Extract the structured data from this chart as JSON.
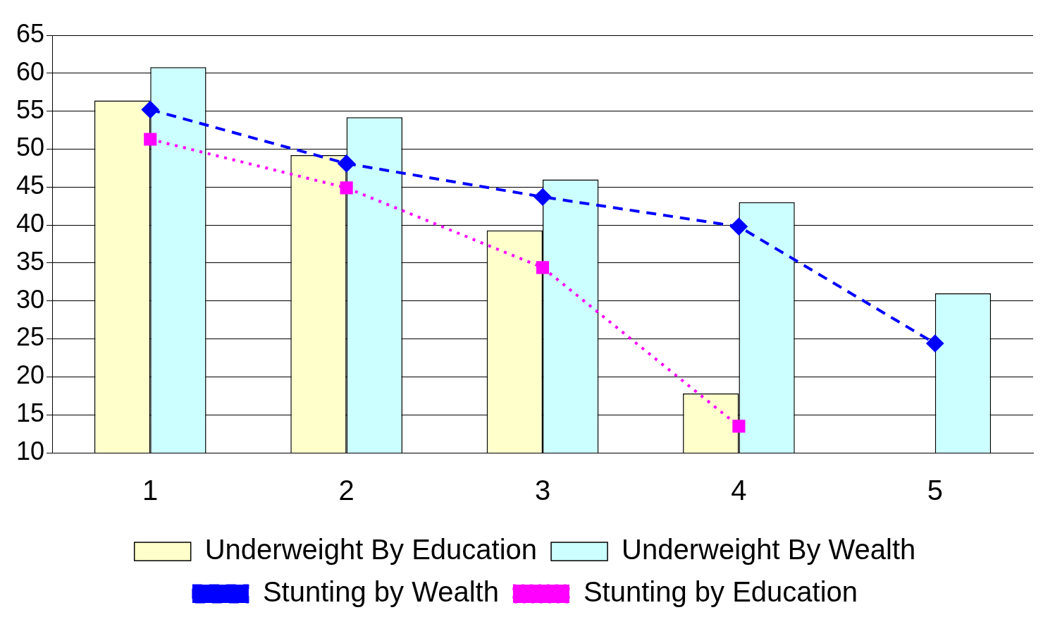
{
  "chart_data": {
    "type": "bar",
    "categories": [
      "1",
      "2",
      "3",
      "4",
      "5"
    ],
    "series": [
      {
        "name": "Underweight By Education",
        "color": "#ffffcc",
        "values": [
          56.4,
          49.2,
          39.3,
          17.8,
          null
        ]
      },
      {
        "name": "Underweight By Wealth",
        "color": "#ccffff",
        "values": [
          60.8,
          54.2,
          46.0,
          43.0,
          31.0
        ]
      },
      {
        "name": "Stunting by Wealth",
        "type": "line",
        "color": "#0000ff",
        "marker": "diamond",
        "line_style": "dashed",
        "values": [
          55.2,
          48.1,
          43.7,
          39.8,
          24.4
        ]
      },
      {
        "name": "Stunting by Education",
        "type": "line",
        "color": "#ff00ff",
        "marker": "square",
        "line_style": "dotted",
        "values": [
          51.3,
          44.9,
          34.4,
          13.5,
          null
        ]
      }
    ],
    "ylim": [
      10,
      65
    ],
    "yticks": [
      10,
      15,
      20,
      25,
      30,
      35,
      40,
      45,
      50,
      55,
      60,
      65
    ],
    "grid": "y",
    "legend": "bottom"
  }
}
